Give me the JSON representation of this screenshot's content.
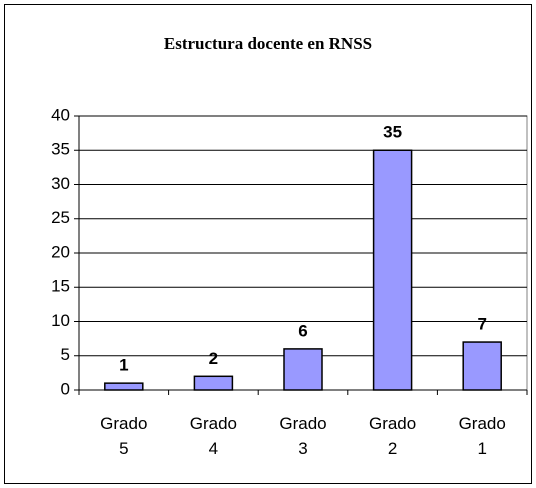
{
  "chart_data": {
    "type": "bar",
    "title": "Estructura docente en RNSS",
    "categories": [
      "Grado 5",
      "Grado 4",
      "Grado 3",
      "Grado 2",
      "Grado 1"
    ],
    "values": [
      1,
      2,
      6,
      35,
      7
    ],
    "color": "#9999ff",
    "ylim": [
      0,
      40
    ],
    "yticks": [
      0,
      5,
      10,
      15,
      20,
      25,
      30,
      35,
      40
    ],
    "grid": true
  }
}
